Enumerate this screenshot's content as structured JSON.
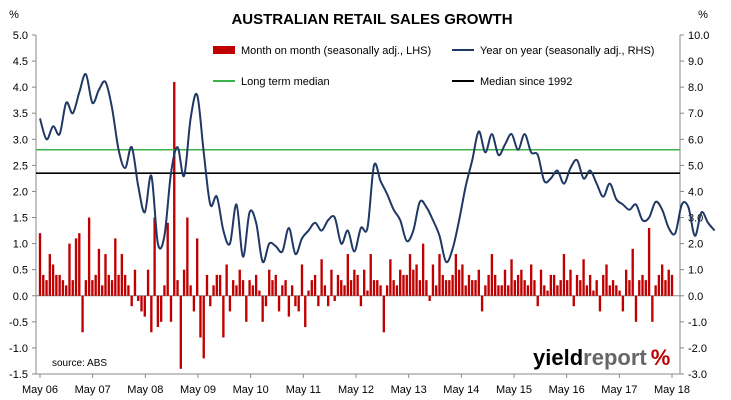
{
  "chart_data": {
    "type": "bar",
    "title": "AUSTRALIAN RETAIL SALES GROWTH",
    "left_unit": "%",
    "right_unit": "%",
    "x_tick_labels": [
      "May 06",
      "May 07",
      "May 08",
      "May 09",
      "May 10",
      "May 11",
      "May 12",
      "May 13",
      "May 14",
      "May 15",
      "May 16",
      "May 17",
      "May 18"
    ],
    "y_left": {
      "min": -1.5,
      "max": 5.0,
      "step": 0.5,
      "ticks": [
        "5.0",
        "4.5",
        "4.0",
        "3.5",
        "3.0",
        "2.5",
        "2.0",
        "1.5",
        "1.0",
        "0.5",
        "0.0",
        "-0.5",
        "-1.0",
        "-1.5"
      ]
    },
    "y_right": {
      "min": -3.0,
      "max": 10.0,
      "step": 1.0,
      "ticks": [
        "10.0",
        "9.0",
        "8.0",
        "7.0",
        "6.0",
        "5.0",
        "4.0",
        "3.0",
        "2.0",
        "1.0",
        "0.0",
        "-1.0",
        "-2.0",
        "-3.0"
      ]
    },
    "start": "May 06",
    "series": [
      {
        "name": "Month on month (seasonally adj., LHS)",
        "kind": "bar",
        "axis": "left",
        "color": "#c00000",
        "values": [
          1.2,
          0.4,
          0.3,
          0.8,
          0.6,
          0.4,
          0.4,
          0.3,
          0.2,
          1.0,
          0.3,
          1.1,
          1.2,
          -0.7,
          0.3,
          1.5,
          0.3,
          0.4,
          0.9,
          0.2,
          0.8,
          0.4,
          0.3,
          1.1,
          0.4,
          0.8,
          0.4,
          0.2,
          -0.2,
          0.5,
          -0.1,
          -0.3,
          -0.4,
          0.5,
          -0.7,
          1.5,
          -0.6,
          -0.5,
          0.2,
          1.4,
          -0.5,
          4.1,
          0.3,
          -1.4,
          0.5,
          1.5,
          0.2,
          -0.3,
          1.1,
          -0.8,
          -1.2,
          0.4,
          -0.2,
          0.2,
          0.4,
          0.4,
          -0.8,
          0.6,
          -0.3,
          0.3,
          0.2,
          0.5,
          0.3,
          -0.5,
          0.3,
          0.2,
          0.4,
          0.1,
          -0.5,
          -0.2,
          0.5,
          0.3,
          0.4,
          -0.3,
          0.2,
          0.3,
          -0.4,
          0.2,
          -0.2,
          -0.3,
          0.6,
          -0.6,
          0.1,
          0.3,
          0.4,
          -0.2,
          0.7,
          0.2,
          -0.2,
          0.5,
          -0.1,
          0.4,
          0.3,
          0.2,
          0.8,
          0.3,
          0.5,
          0.4,
          -0.2,
          0.5,
          0.1,
          0.8,
          0.3,
          0.3,
          0.2,
          -0.7,
          0.2,
          0.7,
          0.3,
          0.2,
          0.5,
          0.4,
          0.4,
          0.8,
          0.5,
          0.6,
          0.3,
          1.0,
          0.3,
          -0.1,
          0.6,
          0.2,
          0.8,
          0.4,
          0.3,
          0.3,
          0.4,
          0.8,
          0.5,
          0.6,
          0.2,
          0.4,
          0.3,
          0.3,
          0.5,
          -0.3,
          0.2,
          0.4,
          0.8,
          0.4,
          0.2,
          0.2,
          0.5,
          0.2,
          0.7,
          0.3,
          0.4,
          0.5,
          0.3,
          0.2,
          0.6,
          0.3,
          -0.2,
          0.5,
          0.2,
          0.1,
          0.4,
          0.4,
          0.2,
          0.3,
          0.8,
          0.3,
          0.5,
          -0.2,
          0.4,
          0.3,
          0.7,
          0.2,
          0.4,
          0.1,
          0.3,
          -0.3,
          0.4,
          0.6,
          0.2,
          0.3,
          0.2,
          0.1,
          -0.3,
          0.5,
          0.3,
          0.9,
          -0.5,
          0.3,
          0.4,
          0.3,
          1.3,
          -0.5,
          0.2,
          0.4,
          0.6,
          0.3,
          0.5,
          0.4
        ],
        "x_values_note": ""
      },
      {
        "name": "Year on year (seasonally adj., RHS)",
        "kind": "line",
        "axis": "right",
        "color": "#1f3864",
        "points": [
          [
            0,
            6.8
          ],
          [
            2,
            6.0
          ],
          [
            4,
            6.5
          ],
          [
            6,
            6.2
          ],
          [
            8,
            7.4
          ],
          [
            10,
            7.0
          ],
          [
            12,
            7.8
          ],
          [
            14,
            8.5
          ],
          [
            16,
            7.4
          ],
          [
            18,
            7.9
          ],
          [
            20,
            8.2
          ],
          [
            22,
            7.2
          ],
          [
            24,
            5.6
          ],
          [
            26,
            4.9
          ],
          [
            28,
            5.7
          ],
          [
            30,
            4.2
          ],
          [
            32,
            3.2
          ],
          [
            34,
            4.6
          ],
          [
            36,
            2.0
          ],
          [
            38,
            2.3
          ],
          [
            40,
            4.7
          ],
          [
            42,
            5.7
          ],
          [
            44,
            4.6
          ],
          [
            46,
            6.8
          ],
          [
            48,
            7.7
          ],
          [
            50,
            5.5
          ],
          [
            52,
            3.5
          ],
          [
            54,
            3.8
          ],
          [
            56,
            2.5
          ],
          [
            58,
            2.0
          ],
          [
            60,
            3.5
          ],
          [
            62,
            1.5
          ],
          [
            64,
            3.2
          ],
          [
            66,
            2.8
          ],
          [
            68,
            1.3
          ],
          [
            70,
            2.0
          ],
          [
            72,
            1.9
          ],
          [
            74,
            1.7
          ],
          [
            76,
            2.6
          ],
          [
            78,
            1.6
          ],
          [
            80,
            2.2
          ],
          [
            82,
            2.5
          ],
          [
            84,
            2.8
          ],
          [
            86,
            2.5
          ],
          [
            88,
            2.9
          ],
          [
            90,
            3.0
          ],
          [
            92,
            2.0
          ],
          [
            94,
            2.5
          ],
          [
            96,
            1.7
          ],
          [
            98,
            2.6
          ],
          [
            100,
            2.6
          ],
          [
            102,
            5.0
          ],
          [
            104,
            4.4
          ],
          [
            106,
            3.9
          ],
          [
            108,
            3.3
          ],
          [
            110,
            2.9
          ],
          [
            112,
            2.1
          ],
          [
            114,
            2.5
          ],
          [
            116,
            3.6
          ],
          [
            118,
            3.4
          ],
          [
            120,
            2.9
          ],
          [
            122,
            2.3
          ],
          [
            124,
            1.3
          ],
          [
            126,
            1.8
          ],
          [
            128,
            2.9
          ],
          [
            130,
            4.2
          ],
          [
            132,
            5.2
          ],
          [
            134,
            6.3
          ],
          [
            136,
            5.5
          ],
          [
            138,
            6.2
          ],
          [
            140,
            5.4
          ],
          [
            142,
            5.8
          ],
          [
            144,
            6.2
          ],
          [
            146,
            5.6
          ],
          [
            148,
            6.2
          ],
          [
            150,
            5.5
          ],
          [
            152,
            5.4
          ],
          [
            154,
            4.4
          ],
          [
            156,
            4.5
          ],
          [
            158,
            4.8
          ],
          [
            160,
            4.3
          ],
          [
            162,
            4.9
          ],
          [
            164,
            5.2
          ],
          [
            166,
            4.5
          ],
          [
            168,
            4.8
          ],
          [
            170,
            4.3
          ],
          [
            172,
            3.8
          ],
          [
            174,
            4.3
          ],
          [
            176,
            3.7
          ],
          [
            178,
            3.5
          ],
          [
            180,
            3.3
          ],
          [
            182,
            3.5
          ],
          [
            184,
            2.9
          ],
          [
            186,
            3.0
          ],
          [
            188,
            3.6
          ],
          [
            190,
            3.3
          ],
          [
            192,
            2.6
          ],
          [
            194,
            2.4
          ],
          [
            196,
            3.5
          ],
          [
            198,
            3.4
          ],
          [
            200,
            2.3
          ],
          [
            202,
            3.2
          ],
          [
            204,
            2.8
          ],
          [
            206,
            2.5
          ]
        ],
        "x_values_note": ""
      },
      {
        "name": "Long term median",
        "kind": "hline",
        "axis": "left",
        "color": "#3cb44b",
        "value": 2.8
      },
      {
        "name": "Median since 1992",
        "kind": "hline",
        "axis": "left",
        "color": "#000000",
        "value": 2.35
      }
    ],
    "annotation": "source: ABS",
    "brand": {
      "part1": "yield",
      "part2": "report",
      "symbol": "%",
      "color1": "#000000",
      "color2": "#666666",
      "symbol_color": "#c00000"
    },
    "legend_placement": "top",
    "grid": false
  }
}
